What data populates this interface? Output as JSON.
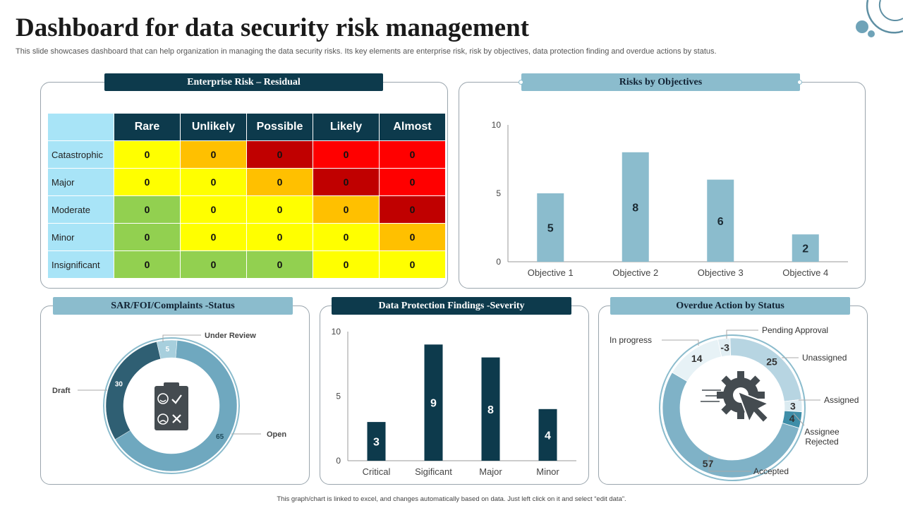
{
  "header": {
    "title": "Dashboard for data security risk management",
    "subtitle": "This slide showcases dashboard that can help organization in managing the data security risks. Its key elements are enterprise risk, risk by objectives, data protection finding and overdue actions by status."
  },
  "footer": "This graph/chart is linked to excel, and changes automatically based on data. Just left click on it and select “edit data”.",
  "colors": {
    "dark": "#0d3a4c",
    "light": "#8bbccd",
    "matrix_header": "#0d3a4c",
    "matrix_label_bg": "#a8e4f7"
  },
  "panels": {
    "enterprise": "Enterprise Risk – Residual",
    "objectives": "Risks by Objectives",
    "sar": "SAR/FOI/Complaints -Status",
    "findings": "Data Protection Findings -Severity",
    "overdue": "Overdue Action by Status"
  },
  "matrix": {
    "columns": [
      "Rare",
      "Unlikely",
      "Possible",
      "Likely",
      "Almost"
    ],
    "rows": [
      {
        "label": "Catastrophic",
        "values": [
          "0",
          "0",
          "0",
          "0",
          "0"
        ],
        "colors": [
          "#ffff00",
          "#ffc000",
          "#c00000",
          "#ff0000",
          "#ff0000"
        ]
      },
      {
        "label": "Major",
        "values": [
          "0",
          "0",
          "0",
          "0",
          "0"
        ],
        "colors": [
          "#ffff00",
          "#ffff00",
          "#ffc000",
          "#c00000",
          "#ff0000"
        ]
      },
      {
        "label": "Moderate",
        "values": [
          "0",
          "0",
          "0",
          "0",
          "0"
        ],
        "colors": [
          "#92d050",
          "#ffff00",
          "#ffff00",
          "#ffc000",
          "#c00000"
        ]
      },
      {
        "label": "Minor",
        "values": [
          "0",
          "0",
          "0",
          "0",
          "0"
        ],
        "colors": [
          "#92d050",
          "#ffff00",
          "#ffff00",
          "#ffff00",
          "#ffc000"
        ]
      },
      {
        "label": "Insignificant",
        "values": [
          "0",
          "0",
          "0",
          "0",
          "0"
        ],
        "colors": [
          "#92d050",
          "#92d050",
          "#92d050",
          "#ffff00",
          "#ffff00"
        ]
      }
    ]
  },
  "chart_data": [
    {
      "type": "bar",
      "title": "Risks by Objectives",
      "categories": [
        "Objective 1",
        "Objective 2",
        "Objective 3",
        "Objective 4"
      ],
      "values": [
        5,
        8,
        6,
        2
      ],
      "yticks": [
        0,
        5,
        10
      ],
      "ylim": [
        0,
        10
      ],
      "color": "#8bbccd",
      "grid": false
    },
    {
      "type": "pie",
      "title": "SAR/FOI/Complaints -Status",
      "labels": [
        "Under Review",
        "Open",
        "Draft"
      ],
      "values": [
        5,
        65,
        30
      ],
      "colors": [
        "#a7cfdd",
        "#6fa8bf",
        "#2f5f73"
      ]
    },
    {
      "type": "bar",
      "title": "Data Protection Findings -Severity",
      "categories": [
        "Critical",
        "Sigificant",
        "Major",
        "Minor"
      ],
      "values": [
        3,
        9,
        8,
        4
      ],
      "yticks": [
        0,
        5,
        10
      ],
      "ylim": [
        0,
        10
      ],
      "color": "#0d3a4c",
      "grid": false
    },
    {
      "type": "pie",
      "title": "Overdue Action by Status",
      "labels": [
        "Pending Approval",
        "Unassigned",
        "Assigned",
        "Assignee Rejected",
        "Accepted",
        "In progress"
      ],
      "values": [
        -3,
        25,
        3,
        4,
        57,
        14
      ],
      "colors": [
        "#e1eef3",
        "#b7d5e2",
        "#dbebf1",
        "#3f8ea8",
        "#7fb2c7",
        "#e7f2f6"
      ]
    }
  ]
}
